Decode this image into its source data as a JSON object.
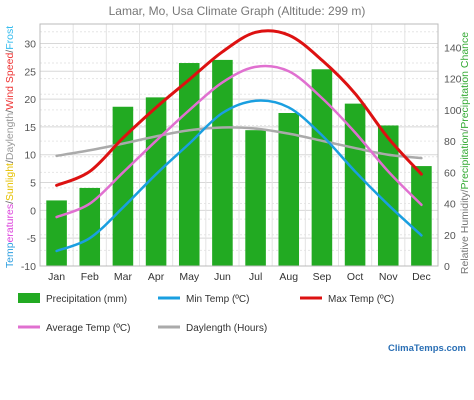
{
  "chart_data": {
    "type": "bar",
    "title": "Lamar, Mo, Usa Climate Graph (Altitude: 299 m)",
    "categories": [
      "Jan",
      "Feb",
      "Mar",
      "Apr",
      "May",
      "Jun",
      "Jul",
      "Aug",
      "Sep",
      "Oct",
      "Nov",
      "Dec"
    ],
    "y_left": {
      "ticks": [
        "-10",
        "-5",
        "0",
        "5",
        "10",
        "15",
        "20",
        "25",
        "30"
      ],
      "ylim": [
        -10,
        33.5
      ]
    },
    "y_right": {
      "ticks": [
        "0",
        "20",
        "40",
        "60",
        "80",
        "100",
        "120",
        "140"
      ],
      "ylim": [
        0,
        155
      ]
    },
    "left_label_parts": [
      {
        "text": "Temp",
        "color": "#2f9fe0"
      },
      {
        "text": "eratures",
        "color": "#dd44dd"
      },
      {
        "text": "/",
        "color": "#666666"
      },
      {
        "text": "Sunlight",
        "color": "#e5c000"
      },
      {
        "text": "/",
        "color": "#666666"
      },
      {
        "text": "Daylength",
        "color": "#999999"
      },
      {
        "text": "/",
        "color": "#666666"
      },
      {
        "text": "Wind Speed",
        "color": "#ee3333"
      },
      {
        "text": "/",
        "color": "#666666"
      },
      {
        "text": "Frost",
        "color": "#33bbee"
      }
    ],
    "right_label_parts": [
      {
        "text": "Relative Humidity",
        "color": "#777777"
      },
      {
        "text": "/",
        "color": "#777777"
      },
      {
        "text": "Precipitation",
        "color": "#33aa33"
      },
      {
        "text": "/",
        "color": "#777777"
      },
      {
        "text": "Precipitation Chance",
        "color": "#33aa33"
      }
    ],
    "series": [
      {
        "name": "Precipitation (mm)",
        "type": "bar",
        "axis": "right",
        "color": "#22aa22",
        "values": [
          42,
          50,
          102,
          108,
          130,
          132,
          87,
          98,
          126,
          104,
          90,
          64
        ]
      },
      {
        "name": "Min Temp (ºC)",
        "type": "line",
        "axis": "left",
        "color": "#1a9fe0",
        "values": [
          -7.3,
          -5,
          0.5,
          6.5,
          12,
          17.5,
          19.7,
          18.5,
          13.5,
          7,
          1,
          -4.5
        ]
      },
      {
        "name": "Max Temp (ºC)",
        "type": "line",
        "axis": "left",
        "color": "#dd1111",
        "values": [
          4.5,
          7,
          13,
          18.5,
          23.5,
          28.5,
          32,
          31.5,
          27,
          21,
          13,
          6.5
        ]
      },
      {
        "name": "Average Temp (ºC)",
        "type": "line",
        "axis": "left",
        "color": "#e070d0",
        "values": [
          -1.2,
          1.2,
          6.8,
          12.5,
          18,
          23,
          25.8,
          25,
          20.2,
          14,
          7,
          1
        ]
      },
      {
        "name": "Daylength (Hours)",
        "type": "line",
        "axis": "left",
        "color": "#aaaaaa",
        "values": [
          9.8,
          10.8,
          12,
          13.3,
          14.4,
          14.9,
          14.7,
          13.8,
          12.5,
          11.2,
          10,
          9.4
        ]
      }
    ],
    "grid": true,
    "legend_position": "bottom"
  },
  "brand": "ClimaTemps.com"
}
